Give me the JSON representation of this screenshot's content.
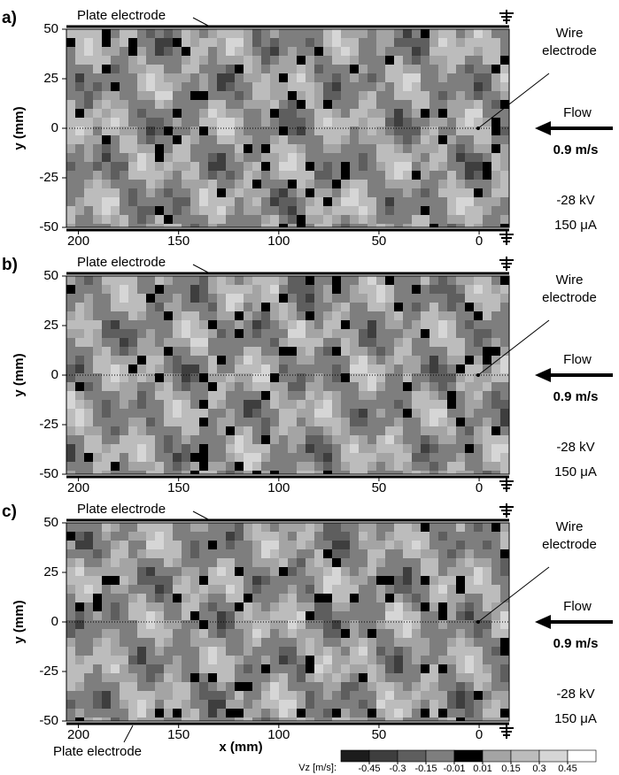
{
  "chart_data": [
    {
      "type": "contour",
      "panel_label": "a)",
      "ylabel": "y (mm)",
      "xlim": [
        206,
        -15
      ],
      "ylim": [
        -50,
        50
      ],
      "xticks": [
        200,
        150,
        100,
        50,
        0
      ],
      "yticks": [
        50,
        25,
        0,
        -25,
        -50
      ],
      "annotations": {
        "plate_top": "Plate electrode",
        "wire": [
          "Wire",
          "electrode"
        ],
        "flow": "Flow",
        "speed": "0.9 m/s",
        "voltage": "-28 kV",
        "current": "150 μA"
      }
    },
    {
      "type": "contour",
      "panel_label": "b)",
      "ylabel": "y (mm)",
      "xlim": [
        206,
        -15
      ],
      "ylim": [
        -50,
        50
      ],
      "xticks": [
        200,
        150,
        100,
        50,
        0
      ],
      "yticks": [
        50,
        25,
        0,
        -25,
        -50
      ],
      "annotations": {
        "plate_top": "Plate electrode",
        "wire": [
          "Wire",
          "electrode"
        ],
        "flow": "Flow",
        "speed": "0.9 m/s",
        "voltage": "-28 kV",
        "current": "150 μA"
      }
    },
    {
      "type": "contour",
      "panel_label": "c)",
      "ylabel": "y (mm)",
      "xlabel": "x (mm)",
      "xlim": [
        206,
        -15
      ],
      "ylim": [
        -50,
        50
      ],
      "xticks": [
        200,
        150,
        100,
        50,
        0
      ],
      "yticks": [
        50,
        25,
        0,
        -25,
        -50
      ],
      "annotations": {
        "plate_top": "Plate electrode",
        "plate_bottom": "Plate electrode",
        "wire": [
          "Wire",
          "electrode"
        ],
        "flow": "Flow",
        "speed": "0.9 m/s",
        "voltage": "-28 kV",
        "current": "150 μA"
      }
    }
  ],
  "colorbar": {
    "label": "Vz [m/s]:",
    "levels": [
      -0.45,
      -0.3,
      -0.15,
      -0.01,
      0.01,
      0.15,
      0.3,
      0.45
    ],
    "colors": [
      "#1c1c1c",
      "#3e3e3e",
      "#5e5e5e",
      "#7e7e7e",
      "#000000",
      "#a4a4a4",
      "#bcbcbc",
      "#d6d6d6",
      "#ffffff"
    ]
  }
}
